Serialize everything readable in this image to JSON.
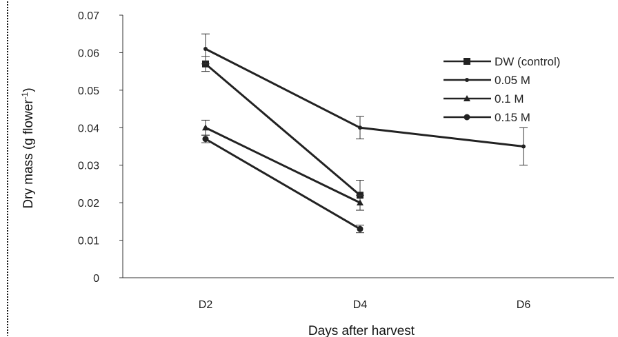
{
  "chart_data": {
    "type": "line",
    "xlabel": "Days after harvest",
    "ylabel": "Dry mass (g flower",
    "ylabel_sup": "-1",
    "ylabel_close": ")",
    "categories": [
      "D2",
      "D4",
      "D6"
    ],
    "ylim": [
      0,
      0.07
    ],
    "yticks": [
      "0",
      "0.01",
      "0.02",
      "0.03",
      "0.04",
      "0.05",
      "0.06",
      "0.07"
    ],
    "legend_position": "right",
    "series": [
      {
        "name": "DW (control)",
        "values": [
          0.057,
          0.022,
          null
        ],
        "errors": [
          0.002,
          0.004,
          null
        ],
        "marker": "square"
      },
      {
        "name": "0.05 M",
        "values": [
          0.061,
          0.04,
          0.035
        ],
        "errors": [
          0.004,
          0.003,
          0.005
        ],
        "marker": "dot"
      },
      {
        "name": "0.1 M",
        "values": [
          0.04,
          0.02,
          null
        ],
        "errors": [
          0.002,
          0.002,
          null
        ],
        "marker": "triangle"
      },
      {
        "name": "0.15 M",
        "values": [
          0.037,
          0.013,
          null
        ],
        "errors": [
          0.001,
          0.001,
          null
        ],
        "marker": "circle"
      }
    ]
  }
}
